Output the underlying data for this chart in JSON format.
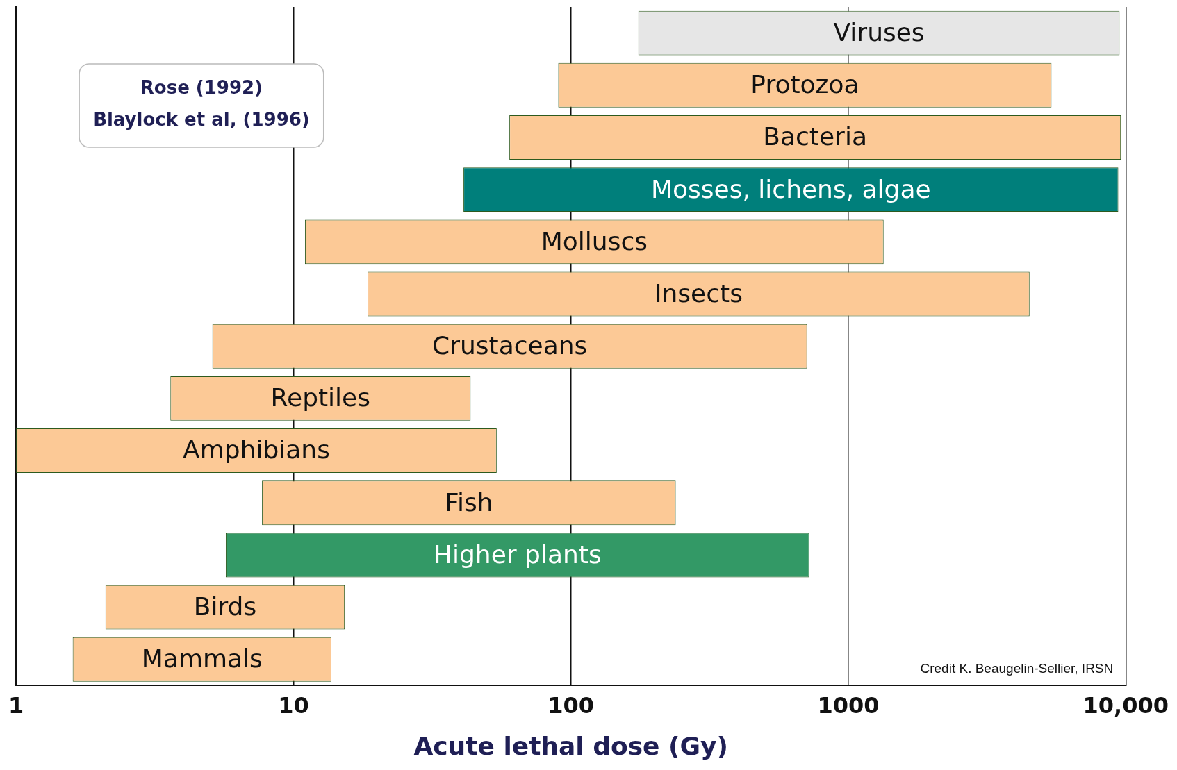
{
  "chart_data": {
    "type": "bar",
    "orientation": "horizontal",
    "log": "x",
    "grid": "x",
    "categories": [
      "Viruses",
      "Protozoa",
      "Bacteria",
      "Mosses, lichens, algae",
      "Molluscs",
      "Insects",
      "Crustaceans",
      "Reptiles",
      "Amphibians",
      "Fish",
      "Higher plants",
      "Birds",
      "Mammals"
    ],
    "base": [
      175,
      90,
      60,
      41,
      11,
      18.5,
      5.1,
      3.6,
      1,
      7.7,
      5.7,
      2.1,
      1.6
    ],
    "values": [
      9325,
      5310,
      9540,
      9359,
      1329,
      4481,
      705,
      39.9,
      53,
      231,
      717,
      13.2,
      12.1
    ],
    "colors": [
      "#e6e6e6",
      "#fcc996",
      "#fcc996",
      "#007f7b",
      "#fcc996",
      "#fcc996",
      "#fcc996",
      "#fcc996",
      "#fcc996",
      "#fcc996",
      "#339966",
      "#fcc996",
      "#fcc996"
    ],
    "xlim": [
      1,
      10000
    ],
    "xticks": [
      1,
      10,
      100,
      1000,
      {
        "value": 10000,
        "label": "10,000"
      }
    ],
    "xlabel": "Acute lethal dose (Gy)",
    "annotations": [
      "Rose (1992)",
      "Blaylock et al, (1996)",
      "Credit K. Beaugelin-Sellier, IRSN"
    ]
  }
}
